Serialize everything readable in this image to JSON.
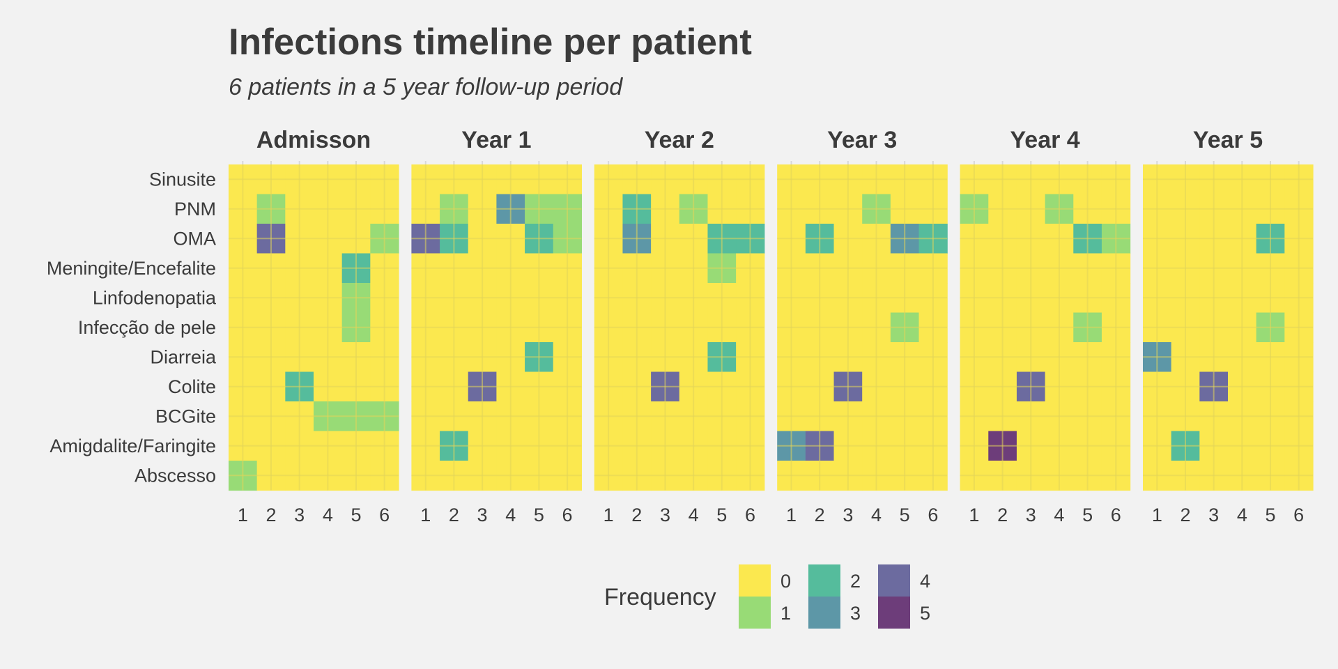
{
  "chart_data": {
    "type": "heatmap",
    "title": "Infections timeline per patient",
    "subtitle": "6 patients in a 5 year follow-up period",
    "facets": [
      "Admisson",
      "Year 1",
      "Year 2",
      "Year 3",
      "Year 4",
      "Year 5"
    ],
    "patients": [
      "1",
      "2",
      "3",
      "4",
      "5",
      "6"
    ],
    "infections": [
      "Sinusite",
      "PNM",
      "OMA",
      "Meningite/Encefalite",
      "Linfodenopatia",
      "Infecção de pele",
      "Diarreia",
      "Colite",
      "BCGite",
      "Amigdalite/Faringite",
      "Abscesso"
    ],
    "values": [
      [
        [
          0,
          0,
          0,
          0,
          0,
          0
        ],
        [
          0,
          1,
          0,
          0,
          0,
          0
        ],
        [
          0,
          4,
          0,
          0,
          0,
          1
        ],
        [
          0,
          0,
          0,
          0,
          2,
          0
        ],
        [
          0,
          0,
          0,
          0,
          1,
          0
        ],
        [
          0,
          0,
          0,
          0,
          1,
          0
        ],
        [
          0,
          0,
          0,
          0,
          0,
          0
        ],
        [
          0,
          0,
          2,
          0,
          0,
          0
        ],
        [
          0,
          0,
          0,
          1,
          1,
          1
        ],
        [
          0,
          0,
          0,
          0,
          0,
          0
        ],
        [
          1,
          0,
          0,
          0,
          0,
          0
        ]
      ],
      [
        [
          0,
          0,
          0,
          0,
          0,
          0
        ],
        [
          0,
          1,
          0,
          3,
          1,
          1
        ],
        [
          4,
          2,
          0,
          0,
          2,
          1
        ],
        [
          0,
          0,
          0,
          0,
          0,
          0
        ],
        [
          0,
          0,
          0,
          0,
          0,
          0
        ],
        [
          0,
          0,
          0,
          0,
          0,
          0
        ],
        [
          0,
          0,
          0,
          0,
          2,
          0
        ],
        [
          0,
          0,
          4,
          0,
          0,
          0
        ],
        [
          0,
          0,
          0,
          0,
          0,
          0
        ],
        [
          0,
          2,
          0,
          0,
          0,
          0
        ],
        [
          0,
          0,
          0,
          0,
          0,
          0
        ]
      ],
      [
        [
          0,
          0,
          0,
          0,
          0,
          0
        ],
        [
          0,
          2,
          0,
          1,
          0,
          0
        ],
        [
          0,
          3,
          0,
          0,
          2,
          2
        ],
        [
          0,
          0,
          0,
          0,
          1,
          0
        ],
        [
          0,
          0,
          0,
          0,
          0,
          0
        ],
        [
          0,
          0,
          0,
          0,
          0,
          0
        ],
        [
          0,
          0,
          0,
          0,
          2,
          0
        ],
        [
          0,
          0,
          4,
          0,
          0,
          0
        ],
        [
          0,
          0,
          0,
          0,
          0,
          0
        ],
        [
          0,
          0,
          0,
          0,
          0,
          0
        ],
        [
          0,
          0,
          0,
          0,
          0,
          0
        ]
      ],
      [
        [
          0,
          0,
          0,
          0,
          0,
          0
        ],
        [
          0,
          0,
          0,
          1,
          0,
          0
        ],
        [
          0,
          2,
          0,
          0,
          3,
          2
        ],
        [
          0,
          0,
          0,
          0,
          0,
          0
        ],
        [
          0,
          0,
          0,
          0,
          0,
          0
        ],
        [
          0,
          0,
          0,
          0,
          1,
          0
        ],
        [
          0,
          0,
          0,
          0,
          0,
          0
        ],
        [
          0,
          0,
          4,
          0,
          0,
          0
        ],
        [
          0,
          0,
          0,
          0,
          0,
          0
        ],
        [
          3,
          4,
          0,
          0,
          0,
          0
        ],
        [
          0,
          0,
          0,
          0,
          0,
          0
        ]
      ],
      [
        [
          0,
          0,
          0,
          0,
          0,
          0
        ],
        [
          1,
          0,
          0,
          1,
          0,
          0
        ],
        [
          0,
          0,
          0,
          0,
          2,
          1
        ],
        [
          0,
          0,
          0,
          0,
          0,
          0
        ],
        [
          0,
          0,
          0,
          0,
          0,
          0
        ],
        [
          0,
          0,
          0,
          0,
          1,
          0
        ],
        [
          0,
          0,
          0,
          0,
          0,
          0
        ],
        [
          0,
          0,
          4,
          0,
          0,
          0
        ],
        [
          0,
          0,
          0,
          0,
          0,
          0
        ],
        [
          0,
          5,
          0,
          0,
          0,
          0
        ],
        [
          0,
          0,
          0,
          0,
          0,
          0
        ]
      ],
      [
        [
          0,
          0,
          0,
          0,
          0,
          0
        ],
        [
          0,
          0,
          0,
          0,
          0,
          0
        ],
        [
          0,
          0,
          0,
          0,
          2,
          0
        ],
        [
          0,
          0,
          0,
          0,
          0,
          0
        ],
        [
          0,
          0,
          0,
          0,
          0,
          0
        ],
        [
          0,
          0,
          0,
          0,
          1,
          0
        ],
        [
          3,
          0,
          0,
          0,
          0,
          0
        ],
        [
          0,
          0,
          4,
          0,
          0,
          0
        ],
        [
          0,
          0,
          0,
          0,
          0,
          0
        ],
        [
          0,
          2,
          0,
          0,
          0,
          0
        ],
        [
          0,
          0,
          0,
          0,
          0,
          0
        ]
      ]
    ],
    "legend": {
      "title": "Frequency",
      "levels": [
        "0",
        "1",
        "2",
        "3",
        "4",
        "5"
      ],
      "colors": [
        "#fbe84f",
        "#98db76",
        "#55bc9c",
        "#5d97a7",
        "#6c6b9f",
        "#6d3d7a"
      ]
    },
    "grid": true,
    "legend_position": "bottom"
  }
}
